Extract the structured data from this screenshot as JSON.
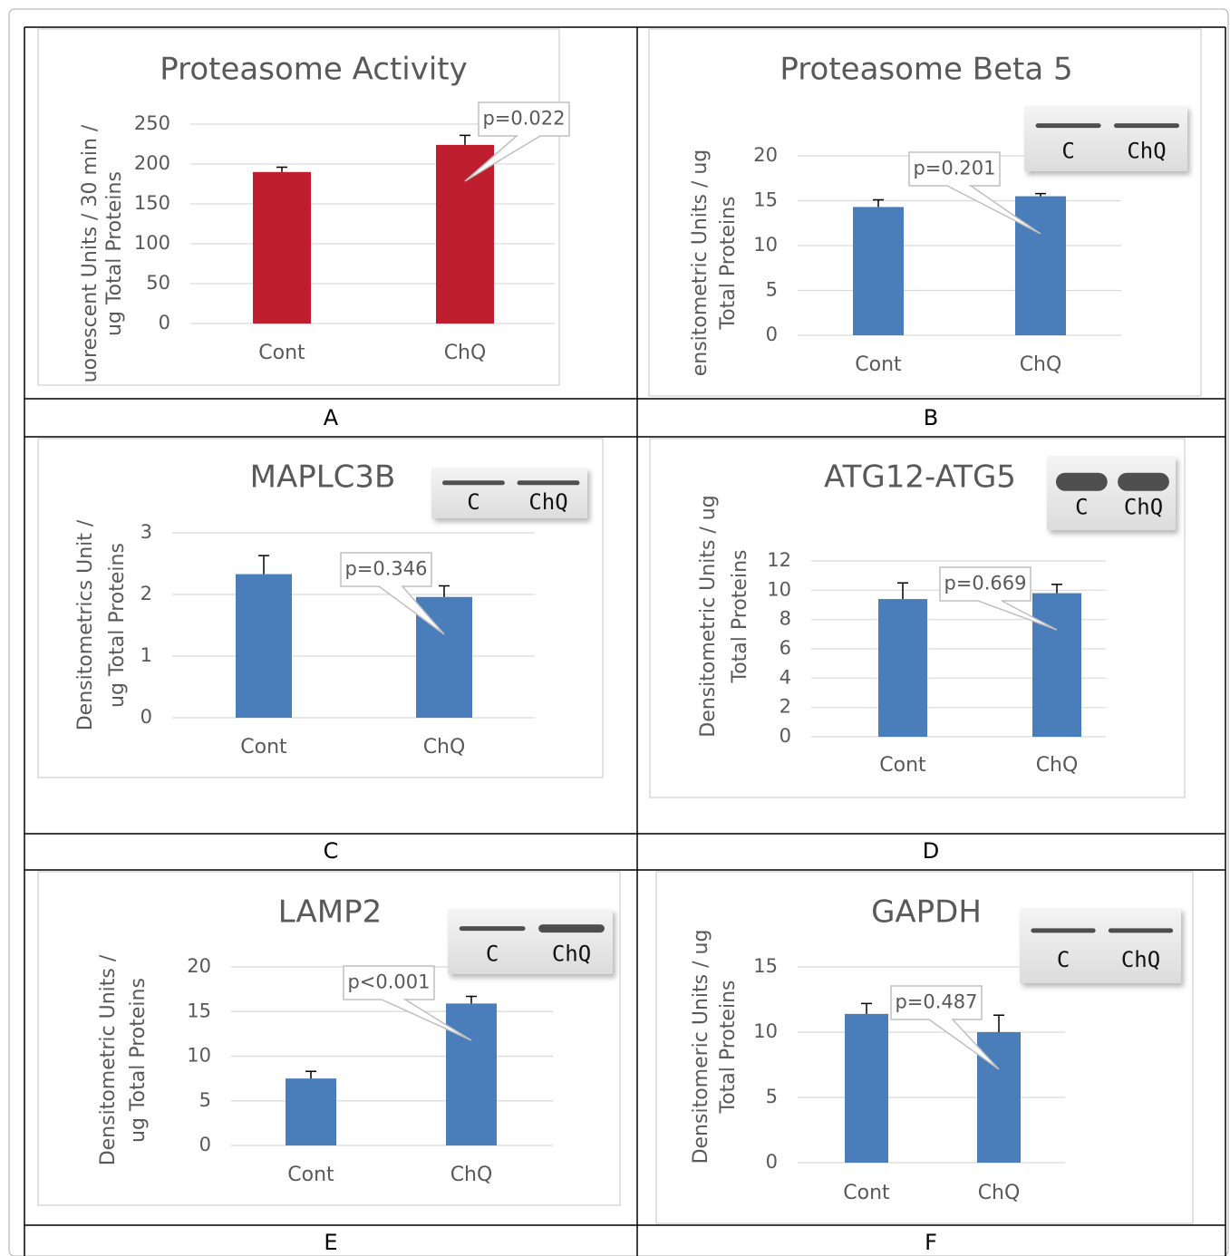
{
  "chart_data": [
    {
      "type": "bar",
      "panel": "A",
      "title": "Proteasome Activity",
      "y_label": [
        "uorescent Units / 30 min /",
        "ug Total Proteins"
      ],
      "categories": [
        "Cont",
        "ChQ"
      ],
      "values": [
        190,
        224
      ],
      "errors": [
        6,
        12
      ],
      "color": "#be1e2d",
      "ylim": [
        0,
        250
      ],
      "yticks": [
        0,
        50,
        100,
        150,
        200,
        250
      ],
      "grid": true,
      "annotation": "p=0.022"
    },
    {
      "type": "bar",
      "panel": "B",
      "title": "Proteasome Beta 5",
      "y_label": [
        "ensitometric Units / ug",
        "Total Proteins"
      ],
      "categories": [
        "Cont",
        "ChQ"
      ],
      "values": [
        14.3,
        15.5
      ],
      "errors": [
        0.8,
        0.3
      ],
      "color": "#4a7ebb",
      "ylim": [
        0,
        20
      ],
      "yticks": [
        0,
        5,
        10,
        15,
        20
      ],
      "grid": true,
      "annotation": "p=0.201",
      "blot_labels": [
        "C",
        "ChQ"
      ]
    },
    {
      "type": "bar",
      "panel": "C",
      "title": "MAPLC3B",
      "y_label": [
        "Densitometrics Unit /",
        "ug Total Proteins"
      ],
      "categories": [
        "Cont",
        "ChQ"
      ],
      "values": [
        2.33,
        1.96
      ],
      "errors": [
        0.3,
        0.18
      ],
      "color": "#4a7ebb",
      "ylim": [
        0,
        3
      ],
      "yticks": [
        0,
        1,
        2,
        3
      ],
      "grid": true,
      "annotation": "p=0.346",
      "blot_labels": [
        "C",
        "ChQ"
      ]
    },
    {
      "type": "bar",
      "panel": "D",
      "title": "ATG12-ATG5",
      "y_label": [
        "Densitometric Units / ug",
        "Total Proteins"
      ],
      "categories": [
        "Cont",
        "ChQ"
      ],
      "values": [
        9.4,
        9.8
      ],
      "errors": [
        1.1,
        0.6
      ],
      "color": "#4a7ebb",
      "ylim": [
        0,
        12
      ],
      "yticks": [
        0,
        2,
        4,
        6,
        8,
        10,
        12
      ],
      "grid": true,
      "annotation": "p=0.669",
      "blot_labels": [
        "C",
        "ChQ"
      ]
    },
    {
      "type": "bar",
      "panel": "E",
      "title": "LAMP2",
      "y_label": [
        "Densitometric Units /",
        "ug Total Proteins"
      ],
      "categories": [
        "Cont",
        "ChQ"
      ],
      "values": [
        7.5,
        15.9
      ],
      "errors": [
        0.8,
        0.8
      ],
      "color": "#4a7ebb",
      "ylim": [
        0,
        20
      ],
      "yticks": [
        0,
        5,
        10,
        15,
        20
      ],
      "grid": true,
      "annotation": "p<0.001",
      "blot_labels": [
        "C",
        "ChQ"
      ]
    },
    {
      "type": "bar",
      "panel": "F",
      "title": "GAPDH",
      "y_label": [
        "Densitomeric Units / ug",
        "Total Proteins"
      ],
      "categories": [
        "Cont",
        "ChQ"
      ],
      "values": [
        11.4,
        10.0
      ],
      "errors": [
        0.8,
        1.3
      ],
      "color": "#4a7ebb",
      "ylim": [
        0,
        15
      ],
      "yticks": [
        0,
        5,
        10,
        15
      ],
      "grid": true,
      "annotation": "p=0.487",
      "blot_labels": [
        "C",
        "ChQ"
      ]
    }
  ]
}
